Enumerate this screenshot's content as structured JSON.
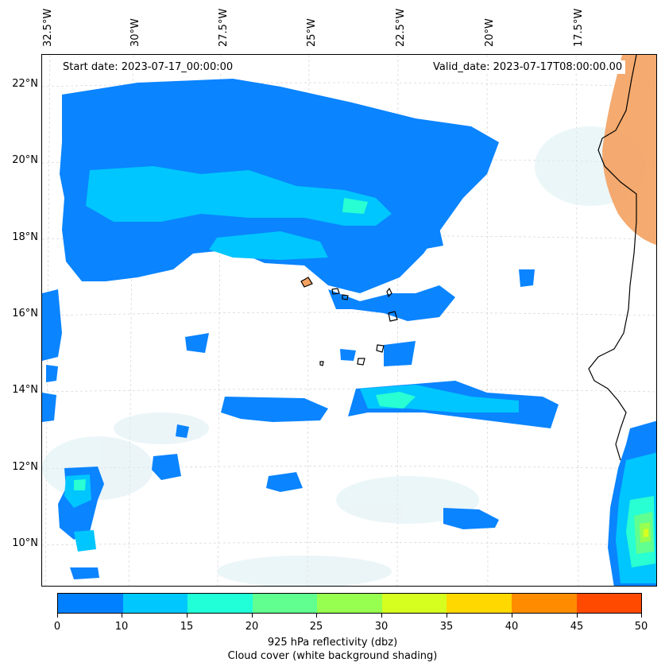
{
  "map": {
    "longitude_labels": [
      "32.5°W",
      "30°W",
      "27.5°W",
      "25°W",
      "22.5°W",
      "20°W",
      "17.5°W"
    ],
    "latitude_labels": [
      "22°N",
      "20°N",
      "18°N",
      "16°N",
      "14°N",
      "12°N",
      "10°N"
    ],
    "start_date": "Start date: 2023-07-17_00:00:00",
    "valid_date": "Valid_date: 2023-07-17T08:00:00.00",
    "colors": {
      "land_heat": "#f4a15f",
      "cloud_shade": "#dbeef3",
      "coastline": "#000000",
      "gridline": "#cccccc"
    }
  },
  "colorbar": {
    "ticks": [
      "0",
      "10",
      "15",
      "20",
      "25",
      "30",
      "35",
      "40",
      "45",
      "50"
    ],
    "colors": [
      "#0080ff",
      "#00c8ff",
      "#20ffd8",
      "#60ff90",
      "#96ff50",
      "#d6ff20",
      "#ffd800",
      "#ff8c00",
      "#ff4a00"
    ],
    "label": "925 hPa reflectivity (dbz)",
    "sublabel": "Cloud cover (white background shading)"
  }
}
